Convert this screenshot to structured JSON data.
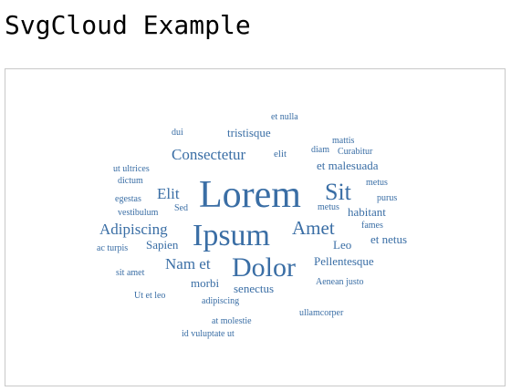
{
  "page": {
    "title": "SvgCloud Example"
  },
  "cloud": {
    "color": "#3a6ea5",
    "words": [
      {
        "text": "et nulla"
      },
      {
        "text": "dui"
      },
      {
        "text": "tristisque"
      },
      {
        "text": "mattis"
      },
      {
        "text": "Consectetur"
      },
      {
        "text": "elit"
      },
      {
        "text": "diam"
      },
      {
        "text": "Curabitur"
      },
      {
        "text": "ut ultrices"
      },
      {
        "text": "et malesuada"
      },
      {
        "text": "dictum"
      },
      {
        "text": "Lorem"
      },
      {
        "text": "Sit"
      },
      {
        "text": "metus"
      },
      {
        "text": "egestas"
      },
      {
        "text": "Elit"
      },
      {
        "text": "purus"
      },
      {
        "text": "Sed"
      },
      {
        "text": "metus"
      },
      {
        "text": "vestibulum"
      },
      {
        "text": "habitant"
      },
      {
        "text": "Adipiscing"
      },
      {
        "text": "Ipsum"
      },
      {
        "text": "Amet"
      },
      {
        "text": "fames"
      },
      {
        "text": "et netus"
      },
      {
        "text": "ac turpis"
      },
      {
        "text": "Sapien"
      },
      {
        "text": "Leo"
      },
      {
        "text": "Nam et"
      },
      {
        "text": "Dolor"
      },
      {
        "text": "Pellentesque"
      },
      {
        "text": "sit amet"
      },
      {
        "text": "morbi"
      },
      {
        "text": "Aenean justo"
      },
      {
        "text": "senectus"
      },
      {
        "text": "Ut et leo"
      },
      {
        "text": "adipiscing"
      },
      {
        "text": "ullamcorper"
      },
      {
        "text": "at molestie"
      },
      {
        "text": "id vuluptate ut"
      }
    ]
  }
}
